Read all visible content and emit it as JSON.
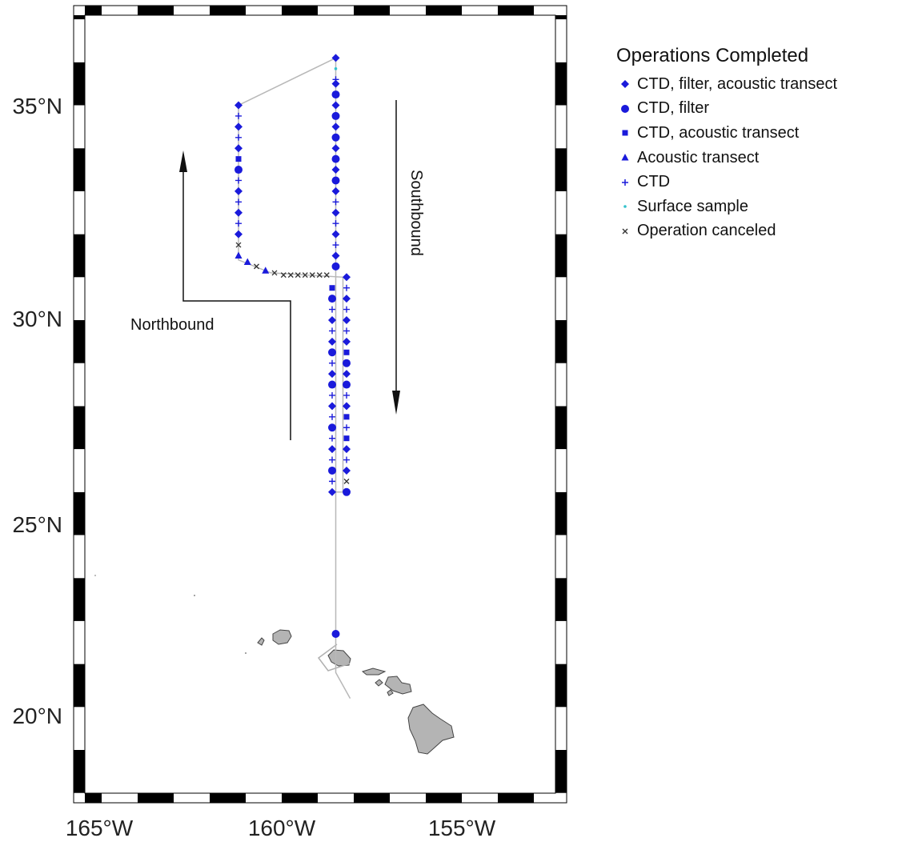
{
  "chart_data": {
    "type": "map",
    "region": "North Pacific, north of the Hawaiian Islands",
    "lon_range": [
      -166.5,
      -152.0
    ],
    "lat_range": [
      18.0,
      37.0
    ],
    "lat_ticks": [
      {
        "value": 35,
        "label": "35°N"
      },
      {
        "value": 30,
        "label": "30°N"
      },
      {
        "value": 25,
        "label": "25°N"
      },
      {
        "value": 20,
        "label": "20°N"
      }
    ],
    "lon_ticks": [
      {
        "value": -165,
        "label": "165°W"
      },
      {
        "value": -160,
        "label": "160°W"
      },
      {
        "value": -155,
        "label": "155°W"
      }
    ],
    "annotations": [
      {
        "id": "northbound",
        "text": "Northbound"
      },
      {
        "id": "southbound",
        "text": "Southbound"
      }
    ],
    "legend": {
      "title": "Operations Completed",
      "entries": [
        {
          "key": "diamond",
          "label": "CTD, filter, acoustic transect",
          "color": "#1a1adb"
        },
        {
          "key": "circle",
          "label": "CTD, filter",
          "color": "#1a1adb"
        },
        {
          "key": "square",
          "label": "CTD, acoustic transect",
          "color": "#1a1adb"
        },
        {
          "key": "triangle",
          "label": "Acoustic transect",
          "color": "#1a1adb"
        },
        {
          "key": "plus",
          "label": "CTD",
          "color": "#1a1adb"
        },
        {
          "key": "dot",
          "label": "Surface sample",
          "color": "#33c2cc"
        },
        {
          "key": "x",
          "label": "Operation canceled",
          "color": "#333333"
        }
      ]
    },
    "cruise_track": [
      [
        -158.1,
        21.2
      ],
      [
        -158.5,
        21.8
      ],
      [
        -158.5,
        36.1
      ],
      [
        -161.2,
        35.0
      ],
      [
        -161.2,
        31.4
      ],
      [
        -160.3,
        31.1
      ],
      [
        -158.3,
        31.0
      ],
      [
        -158.3,
        26.0
      ],
      [
        -158.5,
        26.0
      ],
      [
        -158.5,
        21.8
      ]
    ],
    "stations": [
      {
        "lon": -161.2,
        "lat": 35.0,
        "type": "diamond"
      },
      {
        "lon": -161.2,
        "lat": 34.75,
        "type": "plus"
      },
      {
        "lon": -161.2,
        "lat": 34.5,
        "type": "diamond"
      },
      {
        "lon": -161.2,
        "lat": 34.25,
        "type": "plus"
      },
      {
        "lon": -161.2,
        "lat": 34.0,
        "type": "diamond"
      },
      {
        "lon": -161.2,
        "lat": 33.75,
        "type": "square"
      },
      {
        "lon": -161.2,
        "lat": 33.5,
        "type": "circle"
      },
      {
        "lon": -161.2,
        "lat": 33.25,
        "type": "plus"
      },
      {
        "lon": -161.2,
        "lat": 33.0,
        "type": "diamond"
      },
      {
        "lon": -161.2,
        "lat": 32.75,
        "type": "plus"
      },
      {
        "lon": -161.2,
        "lat": 32.5,
        "type": "diamond"
      },
      {
        "lon": -161.2,
        "lat": 32.25,
        "type": "plus"
      },
      {
        "lon": -161.2,
        "lat": 32.0,
        "type": "diamond"
      },
      {
        "lon": -161.2,
        "lat": 31.75,
        "type": "x"
      },
      {
        "lon": -161.2,
        "lat": 31.5,
        "type": "triangle"
      },
      {
        "lon": -160.95,
        "lat": 31.35,
        "type": "triangle"
      },
      {
        "lon": -160.7,
        "lat": 31.25,
        "type": "x"
      },
      {
        "lon": -160.45,
        "lat": 31.15,
        "type": "triangle"
      },
      {
        "lon": -160.2,
        "lat": 31.1,
        "type": "x"
      },
      {
        "lon": -159.95,
        "lat": 31.05,
        "type": "x"
      },
      {
        "lon": -159.75,
        "lat": 31.05,
        "type": "x"
      },
      {
        "lon": -159.55,
        "lat": 31.05,
        "type": "x"
      },
      {
        "lon": -159.35,
        "lat": 31.05,
        "type": "x"
      },
      {
        "lon": -159.15,
        "lat": 31.05,
        "type": "x"
      },
      {
        "lon": -158.95,
        "lat": 31.05,
        "type": "x"
      },
      {
        "lon": -158.75,
        "lat": 31.05,
        "type": "x"
      },
      {
        "lon": -158.5,
        "lat": 36.1,
        "type": "diamond"
      },
      {
        "lon": -158.5,
        "lat": 35.85,
        "type": "dot"
      },
      {
        "lon": -158.5,
        "lat": 35.6,
        "type": "plus"
      },
      {
        "lon": -158.5,
        "lat": 35.5,
        "type": "diamond"
      },
      {
        "lon": -158.5,
        "lat": 35.25,
        "type": "circle"
      },
      {
        "lon": -158.5,
        "lat": 35.0,
        "type": "diamond"
      },
      {
        "lon": -158.5,
        "lat": 34.75,
        "type": "circle"
      },
      {
        "lon": -158.5,
        "lat": 34.5,
        "type": "diamond"
      },
      {
        "lon": -158.5,
        "lat": 34.25,
        "type": "circle"
      },
      {
        "lon": -158.5,
        "lat": 34.0,
        "type": "diamond"
      },
      {
        "lon": -158.5,
        "lat": 33.75,
        "type": "circle"
      },
      {
        "lon": -158.5,
        "lat": 33.5,
        "type": "diamond"
      },
      {
        "lon": -158.5,
        "lat": 33.25,
        "type": "circle"
      },
      {
        "lon": -158.5,
        "lat": 33.0,
        "type": "diamond"
      },
      {
        "lon": -158.5,
        "lat": 32.75,
        "type": "plus"
      },
      {
        "lon": -158.5,
        "lat": 32.5,
        "type": "diamond"
      },
      {
        "lon": -158.5,
        "lat": 32.25,
        "type": "plus"
      },
      {
        "lon": -158.5,
        "lat": 32.0,
        "type": "diamond"
      },
      {
        "lon": -158.5,
        "lat": 31.75,
        "type": "plus"
      },
      {
        "lon": -158.5,
        "lat": 31.5,
        "type": "diamond"
      },
      {
        "lon": -158.5,
        "lat": 31.25,
        "type": "circle"
      },
      {
        "lon": -158.5,
        "lat": 22.7,
        "type": "circle"
      },
      {
        "lon": -158.2,
        "lat": 31.0,
        "type": "diamond"
      },
      {
        "lon": -158.2,
        "lat": 30.75,
        "type": "plus"
      },
      {
        "lon": -158.2,
        "lat": 30.5,
        "type": "diamond"
      },
      {
        "lon": -158.2,
        "lat": 30.25,
        "type": "plus"
      },
      {
        "lon": -158.2,
        "lat": 30.0,
        "type": "diamond"
      },
      {
        "lon": -158.2,
        "lat": 29.75,
        "type": "plus"
      },
      {
        "lon": -158.2,
        "lat": 29.5,
        "type": "diamond"
      },
      {
        "lon": -158.2,
        "lat": 29.25,
        "type": "square"
      },
      {
        "lon": -158.2,
        "lat": 29.0,
        "type": "circle"
      },
      {
        "lon": -158.2,
        "lat": 28.75,
        "type": "diamond"
      },
      {
        "lon": -158.2,
        "lat": 28.5,
        "type": "circle"
      },
      {
        "lon": -158.2,
        "lat": 28.25,
        "type": "plus"
      },
      {
        "lon": -158.2,
        "lat": 28.0,
        "type": "diamond"
      },
      {
        "lon": -158.2,
        "lat": 27.75,
        "type": "square"
      },
      {
        "lon": -158.2,
        "lat": 27.5,
        "type": "plus"
      },
      {
        "lon": -158.2,
        "lat": 27.25,
        "type": "square"
      },
      {
        "lon": -158.2,
        "lat": 27.0,
        "type": "diamond"
      },
      {
        "lon": -158.2,
        "lat": 26.75,
        "type": "plus"
      },
      {
        "lon": -158.2,
        "lat": 26.5,
        "type": "diamond"
      },
      {
        "lon": -158.2,
        "lat": 26.25,
        "type": "x"
      },
      {
        "lon": -158.2,
        "lat": 26.0,
        "type": "circle"
      },
      {
        "lon": -158.6,
        "lat": 30.75,
        "type": "square"
      },
      {
        "lon": -158.6,
        "lat": 30.5,
        "type": "circle"
      },
      {
        "lon": -158.6,
        "lat": 30.25,
        "type": "plus"
      },
      {
        "lon": -158.6,
        "lat": 30.0,
        "type": "diamond"
      },
      {
        "lon": -158.6,
        "lat": 29.75,
        "type": "plus"
      },
      {
        "lon": -158.6,
        "lat": 29.5,
        "type": "diamond"
      },
      {
        "lon": -158.6,
        "lat": 29.25,
        "type": "circle"
      },
      {
        "lon": -158.6,
        "lat": 29.0,
        "type": "plus"
      },
      {
        "lon": -158.6,
        "lat": 28.75,
        "type": "diamond"
      },
      {
        "lon": -158.6,
        "lat": 28.5,
        "type": "circle"
      },
      {
        "lon": -158.6,
        "lat": 28.25,
        "type": "plus"
      },
      {
        "lon": -158.6,
        "lat": 28.0,
        "type": "diamond"
      },
      {
        "lon": -158.6,
        "lat": 27.75,
        "type": "plus"
      },
      {
        "lon": -158.6,
        "lat": 27.5,
        "type": "circle"
      },
      {
        "lon": -158.6,
        "lat": 27.25,
        "type": "plus"
      },
      {
        "lon": -158.6,
        "lat": 27.0,
        "type": "diamond"
      },
      {
        "lon": -158.6,
        "lat": 26.75,
        "type": "plus"
      },
      {
        "lon": -158.6,
        "lat": 26.5,
        "type": "circle"
      },
      {
        "lon": -158.6,
        "lat": 26.25,
        "type": "plus"
      },
      {
        "lon": -158.6,
        "lat": 26.0,
        "type": "diamond"
      }
    ]
  }
}
